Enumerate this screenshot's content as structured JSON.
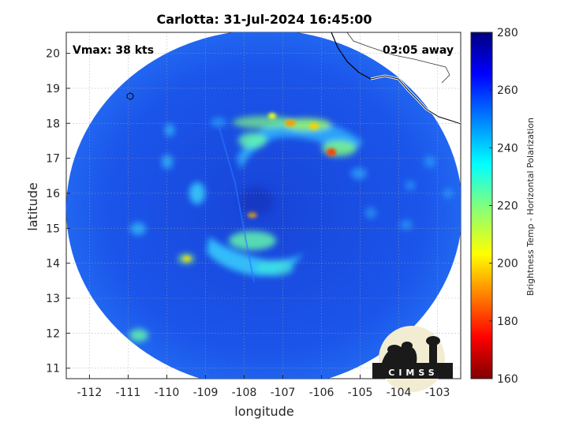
{
  "title": "Carlotta: 31-Jul-2024 16:45:00",
  "overlay": {
    "vmax": "Vmax: 38 kts",
    "away": "03:05 away"
  },
  "axes": {
    "xlabel": "longitude",
    "ylabel": "latitude",
    "xlim": [
      -112.6,
      -102.4
    ],
    "ylim": [
      10.7,
      20.6
    ],
    "xticks": [
      "-112",
      "-111",
      "-110",
      "-109",
      "-108",
      "-107",
      "-106",
      "-105",
      "-104",
      "-103"
    ],
    "yticks": [
      "11",
      "12",
      "13",
      "14",
      "15",
      "16",
      "17",
      "18",
      "19",
      "20"
    ],
    "grid": true
  },
  "colorbar": {
    "label": "Brightness Temp - Horizontal Polarization",
    "ticks": [
      "160",
      "180",
      "200",
      "220",
      "240",
      "260",
      "280"
    ],
    "range": [
      160,
      280
    ],
    "colormap": "jet"
  },
  "logo": {
    "text": "CIMSS"
  },
  "colors": {
    "background_field": "#1a4fe6",
    "coastline": "#000000",
    "border": "#ffffff"
  }
}
